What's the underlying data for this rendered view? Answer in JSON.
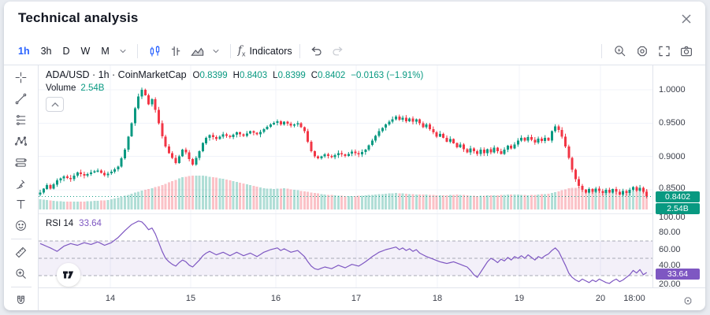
{
  "header": {
    "title": "Technical analysis"
  },
  "toolbar": {
    "intervals": [
      {
        "label": "1h",
        "active": true
      },
      {
        "label": "3h",
        "active": false
      },
      {
        "label": "D",
        "active": false
      },
      {
        "label": "W",
        "active": false
      },
      {
        "label": "M",
        "active": false
      }
    ],
    "fx_label": "f",
    "fx_sub": "x",
    "indicators_label": "Indicators"
  },
  "drawing_tools": [
    "crosshair",
    "trend-line",
    "fib-retracement",
    "xabcd-pattern",
    "projection",
    "brush",
    "text",
    "emoji",
    "ruler",
    "zoom-in",
    "magnet"
  ],
  "legend": {
    "symbol_title": "ADA/USD · 1h · CoinMarketCap",
    "ohlc": [
      {
        "k": "O",
        "v": "0.8399"
      },
      {
        "k": "H",
        "v": "0.8403"
      },
      {
        "k": "L",
        "v": "0.8399"
      },
      {
        "k": "C",
        "v": "0.8402"
      }
    ],
    "change": "−0.0163 (−1.91%)",
    "volume_label": "Volume",
    "volume_value": "2.54B",
    "rsi_label": "RSI 14",
    "rsi_value": "33.64"
  },
  "price_axis": {
    "labels": [
      "1.0000",
      "0.9500",
      "0.9000",
      "0.8500"
    ],
    "price_badge": "0.8402",
    "volume_badge": "2.54B"
  },
  "rsi_axis": {
    "labels": [
      "100.00",
      "80.00",
      "60.00",
      "40.00",
      "20.00"
    ],
    "badge": "33.64"
  },
  "time_axis": {
    "labels": [
      "14",
      "15",
      "16",
      "17",
      "18",
      "19",
      "20",
      "18:00"
    ]
  },
  "colors": {
    "up": "#089981",
    "down": "#f23645",
    "up_vol": "rgba(8,153,129,0.32)",
    "down_vol": "rgba(242,54,69,0.30)",
    "rsi_line": "#7e57c2",
    "rsi_band": "rgba(126,87,194,0.09)",
    "dashed_level": "#9a9daa",
    "grid": "#f0f3fa",
    "pane_divider": "#e8eaf0",
    "current_price_line": "#089981",
    "accent_blue": "#2962ff",
    "badge_price": "#089981",
    "badge_rsi": "#7e57c2"
  },
  "chart_data": {
    "type": "candlestick+volume+rsi",
    "symbol": "ADA/USD",
    "interval": "1h",
    "source": "CoinMarketCap",
    "bars": 180,
    "price_axis_ticks": [
      1.0,
      0.95,
      0.9,
      0.85
    ],
    "price_range_approx": [
      0.836,
      1.005
    ],
    "rsi_axis_ticks": [
      100,
      80,
      60,
      40,
      20
    ],
    "rsi_levels_dashed": [
      70,
      50,
      30
    ],
    "current_price": 0.8402,
    "current_change": -0.0163,
    "current_change_pct": -1.91,
    "current_volume": "2.54B",
    "current_rsi": 33.64,
    "day_grid_x": [
      91,
      193,
      301,
      403,
      506,
      610,
      713
    ],
    "time_label_x": [
      91,
      193,
      301,
      403,
      506,
      610,
      713,
      756
    ],
    "close_anchors": [
      [
        0,
        0.846
      ],
      [
        2,
        0.857
      ],
      [
        3,
        0.852
      ],
      [
        5,
        0.864
      ],
      [
        7,
        0.87
      ],
      [
        9,
        0.866
      ],
      [
        11,
        0.876
      ],
      [
        13,
        0.871
      ],
      [
        15,
        0.876
      ],
      [
        17,
        0.879
      ],
      [
        19,
        0.872
      ],
      [
        21,
        0.877
      ],
      [
        23,
        0.885
      ],
      [
        25,
        0.91
      ],
      [
        27,
        0.95
      ],
      [
        28,
        0.972
      ],
      [
        29,
        0.99
      ],
      [
        30,
        1.0
      ],
      [
        31,
        0.992
      ],
      [
        32,
        0.978
      ],
      [
        33,
        0.986
      ],
      [
        34,
        0.97
      ],
      [
        35,
        0.95
      ],
      [
        36,
        0.93
      ],
      [
        37,
        0.915
      ],
      [
        38,
        0.905
      ],
      [
        39,
        0.898
      ],
      [
        40,
        0.89
      ],
      [
        41,
        0.9
      ],
      [
        42,
        0.91
      ],
      [
        43,
        0.906
      ],
      [
        44,
        0.896
      ],
      [
        45,
        0.888
      ],
      [
        46,
        0.898
      ],
      [
        47,
        0.908
      ],
      [
        48,
        0.92
      ],
      [
        49,
        0.928
      ],
      [
        50,
        0.932
      ],
      [
        52,
        0.926
      ],
      [
        54,
        0.933
      ],
      [
        56,
        0.929
      ],
      [
        58,
        0.936
      ],
      [
        60,
        0.931
      ],
      [
        62,
        0.938
      ],
      [
        64,
        0.933
      ],
      [
        66,
        0.941
      ],
      [
        68,
        0.948
      ],
      [
        70,
        0.953
      ],
      [
        71,
        0.948
      ],
      [
        72,
        0.952
      ],
      [
        74,
        0.946
      ],
      [
        76,
        0.95
      ],
      [
        78,
        0.938
      ],
      [
        79,
        0.922
      ],
      [
        80,
        0.908
      ],
      [
        81,
        0.9
      ],
      [
        82,
        0.897
      ],
      [
        84,
        0.903
      ],
      [
        86,
        0.899
      ],
      [
        88,
        0.905
      ],
      [
        90,
        0.901
      ],
      [
        92,
        0.907
      ],
      [
        94,
        0.903
      ],
      [
        96,
        0.91
      ],
      [
        98,
        0.924
      ],
      [
        100,
        0.938
      ],
      [
        102,
        0.948
      ],
      [
        104,
        0.956
      ],
      [
        105,
        0.96
      ],
      [
        106,
        0.955
      ],
      [
        107,
        0.958
      ],
      [
        108,
        0.953
      ],
      [
        109,
        0.957
      ],
      [
        110,
        0.952
      ],
      [
        111,
        0.956
      ],
      [
        112,
        0.95
      ],
      [
        113,
        0.944
      ],
      [
        114,
        0.948
      ],
      [
        115,
        0.941
      ],
      [
        116,
        0.936
      ],
      [
        117,
        0.93
      ],
      [
        118,
        0.934
      ],
      [
        119,
        0.928
      ],
      [
        120,
        0.922
      ],
      [
        121,
        0.926
      ],
      [
        122,
        0.92
      ],
      [
        123,
        0.914
      ],
      [
        124,
        0.918
      ],
      [
        125,
        0.911
      ],
      [
        126,
        0.906
      ],
      [
        127,
        0.912
      ],
      [
        128,
        0.908
      ],
      [
        129,
        0.904
      ],
      [
        130,
        0.91
      ],
      [
        131,
        0.905
      ],
      [
        132,
        0.911
      ],
      [
        133,
        0.906
      ],
      [
        134,
        0.913
      ],
      [
        135,
        0.908
      ],
      [
        136,
        0.904
      ],
      [
        137,
        0.91
      ],
      [
        138,
        0.916
      ],
      [
        139,
        0.912
      ],
      [
        140,
        0.918
      ],
      [
        141,
        0.924
      ],
      [
        142,
        0.928
      ],
      [
        143,
        0.924
      ],
      [
        144,
        0.929
      ],
      [
        145,
        0.925
      ],
      [
        146,
        0.921
      ],
      [
        147,
        0.927
      ],
      [
        148,
        0.923
      ],
      [
        149,
        0.928
      ],
      [
        150,
        0.924
      ],
      [
        151,
        0.938
      ],
      [
        152,
        0.945
      ],
      [
        153,
        0.94
      ],
      [
        154,
        0.93
      ],
      [
        155,
        0.915
      ],
      [
        156,
        0.898
      ],
      [
        157,
        0.88
      ],
      [
        158,
        0.866
      ],
      [
        159,
        0.856
      ],
      [
        160,
        0.85
      ],
      [
        161,
        0.846
      ],
      [
        162,
        0.851
      ],
      [
        163,
        0.847
      ],
      [
        164,
        0.852
      ],
      [
        165,
        0.848
      ],
      [
        166,
        0.845
      ],
      [
        167,
        0.85
      ],
      [
        168,
        0.846
      ],
      [
        169,
        0.851
      ],
      [
        170,
        0.847
      ],
      [
        171,
        0.843
      ],
      [
        172,
        0.848
      ],
      [
        173,
        0.845
      ],
      [
        174,
        0.85
      ],
      [
        175,
        0.854
      ],
      [
        176,
        0.849
      ],
      [
        177,
        0.853
      ],
      [
        178,
        0.847
      ],
      [
        179,
        0.84
      ]
    ],
    "volume_height_anchors": [
      [
        0,
        13
      ],
      [
        4,
        11
      ],
      [
        8,
        10
      ],
      [
        12,
        10
      ],
      [
        16,
        11
      ],
      [
        20,
        12
      ],
      [
        24,
        16
      ],
      [
        27,
        20
      ],
      [
        30,
        24
      ],
      [
        33,
        27
      ],
      [
        36,
        31
      ],
      [
        39,
        36
      ],
      [
        42,
        41
      ],
      [
        45,
        43
      ],
      [
        48,
        43
      ],
      [
        51,
        41
      ],
      [
        54,
        39
      ],
      [
        57,
        36
      ],
      [
        60,
        33
      ],
      [
        63,
        30
      ],
      [
        66,
        27
      ],
      [
        69,
        26
      ],
      [
        72,
        27
      ],
      [
        75,
        25
      ],
      [
        78,
        23
      ],
      [
        81,
        21
      ],
      [
        84,
        19
      ],
      [
        87,
        18
      ],
      [
        90,
        17
      ],
      [
        93,
        17
      ],
      [
        96,
        18
      ],
      [
        99,
        19
      ],
      [
        102,
        20
      ],
      [
        105,
        21
      ],
      [
        108,
        20
      ],
      [
        111,
        19
      ],
      [
        114,
        19
      ],
      [
        117,
        18
      ],
      [
        120,
        18
      ],
      [
        123,
        19
      ],
      [
        126,
        18
      ],
      [
        129,
        17
      ],
      [
        132,
        18
      ],
      [
        135,
        18
      ],
      [
        138,
        19
      ],
      [
        141,
        19
      ],
      [
        144,
        18
      ],
      [
        147,
        19
      ],
      [
        150,
        20
      ],
      [
        153,
        23
      ],
      [
        156,
        27
      ],
      [
        159,
        28
      ],
      [
        162,
        25
      ],
      [
        165,
        23
      ],
      [
        168,
        22
      ],
      [
        171,
        22
      ],
      [
        174,
        24
      ],
      [
        177,
        25
      ],
      [
        179,
        25
      ]
    ],
    "rsi_anchors": [
      [
        0,
        67
      ],
      [
        3,
        62
      ],
      [
        5,
        58
      ],
      [
        7,
        64
      ],
      [
        9,
        67
      ],
      [
        11,
        65
      ],
      [
        13,
        68
      ],
      [
        15,
        66
      ],
      [
        17,
        69
      ],
      [
        19,
        65
      ],
      [
        21,
        68
      ],
      [
        23,
        74
      ],
      [
        25,
        82
      ],
      [
        27,
        89
      ],
      [
        29,
        93
      ],
      [
        30,
        92
      ],
      [
        31,
        88
      ],
      [
        32,
        83
      ],
      [
        33,
        85
      ],
      [
        34,
        78
      ],
      [
        35,
        68
      ],
      [
        36,
        58
      ],
      [
        37,
        50
      ],
      [
        38,
        46
      ],
      [
        39,
        43
      ],
      [
        40,
        41
      ],
      [
        41,
        45
      ],
      [
        42,
        48
      ],
      [
        43,
        46
      ],
      [
        44,
        42
      ],
      [
        45,
        40
      ],
      [
        46,
        44
      ],
      [
        47,
        48
      ],
      [
        48,
        53
      ],
      [
        49,
        56
      ],
      [
        50,
        58
      ],
      [
        52,
        54
      ],
      [
        54,
        57
      ],
      [
        56,
        53
      ],
      [
        58,
        57
      ],
      [
        60,
        53
      ],
      [
        62,
        56
      ],
      [
        64,
        52
      ],
      [
        66,
        57
      ],
      [
        68,
        60
      ],
      [
        70,
        62
      ],
      [
        71,
        59
      ],
      [
        72,
        61
      ],
      [
        74,
        57
      ],
      [
        76,
        59
      ],
      [
        78,
        52
      ],
      [
        79,
        46
      ],
      [
        80,
        41
      ],
      [
        81,
        38
      ],
      [
        82,
        37
      ],
      [
        84,
        40
      ],
      [
        86,
        38
      ],
      [
        88,
        42
      ],
      [
        90,
        39
      ],
      [
        92,
        43
      ],
      [
        94,
        41
      ],
      [
        96,
        46
      ],
      [
        98,
        52
      ],
      [
        100,
        57
      ],
      [
        102,
        60
      ],
      [
        104,
        62
      ],
      [
        105,
        63
      ],
      [
        106,
        60
      ],
      [
        107,
        62
      ],
      [
        108,
        59
      ],
      [
        109,
        61
      ],
      [
        110,
        58
      ],
      [
        111,
        60
      ],
      [
        112,
        56
      ],
      [
        114,
        52
      ],
      [
        116,
        49
      ],
      [
        118,
        46
      ],
      [
        120,
        44
      ],
      [
        122,
        46
      ],
      [
        124,
        43
      ],
      [
        126,
        40
      ],
      [
        127,
        36
      ],
      [
        128,
        31
      ],
      [
        129,
        28
      ],
      [
        130,
        34
      ],
      [
        131,
        40
      ],
      [
        132,
        46
      ],
      [
        133,
        50
      ],
      [
        134,
        48
      ],
      [
        135,
        45
      ],
      [
        136,
        49
      ],
      [
        137,
        47
      ],
      [
        138,
        51
      ],
      [
        139,
        48
      ],
      [
        140,
        52
      ],
      [
        141,
        50
      ],
      [
        142,
        53
      ],
      [
        143,
        50
      ],
      [
        144,
        54
      ],
      [
        145,
        51
      ],
      [
        146,
        48
      ],
      [
        147,
        52
      ],
      [
        148,
        50
      ],
      [
        149,
        53
      ],
      [
        150,
        55
      ],
      [
        151,
        59
      ],
      [
        152,
        62
      ],
      [
        153,
        58
      ],
      [
        154,
        50
      ],
      [
        155,
        42
      ],
      [
        156,
        33
      ],
      [
        157,
        28
      ],
      [
        158,
        25
      ],
      [
        159,
        23
      ],
      [
        160,
        26
      ],
      [
        161,
        24
      ],
      [
        162,
        22
      ],
      [
        163,
        25
      ],
      [
        164,
        23
      ],
      [
        165,
        26
      ],
      [
        166,
        24
      ],
      [
        167,
        22
      ],
      [
        168,
        21
      ],
      [
        169,
        24
      ],
      [
        170,
        26
      ],
      [
        171,
        23
      ],
      [
        172,
        25
      ],
      [
        173,
        28
      ],
      [
        174,
        31
      ],
      [
        175,
        36
      ],
      [
        176,
        33
      ],
      [
        177,
        37
      ],
      [
        178,
        31
      ],
      [
        179,
        33.6
      ]
    ]
  }
}
